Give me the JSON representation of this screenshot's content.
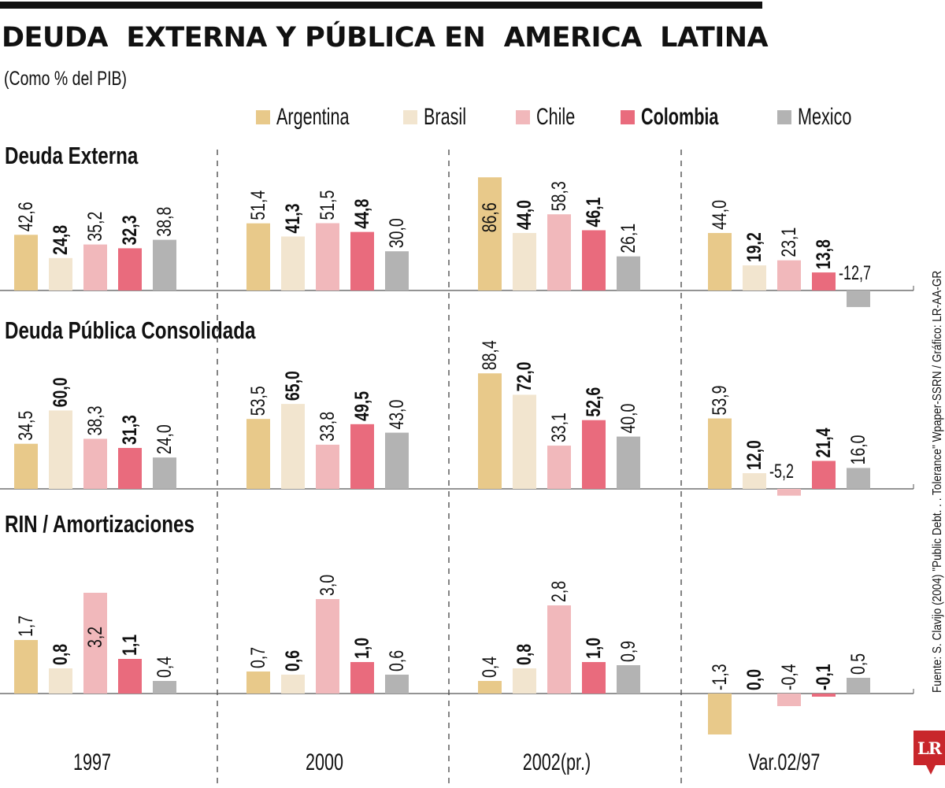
{
  "header": {
    "title": "DEUDA  EXTERNA Y PÚBLICA EN  AMERICA  LATINA",
    "subtitle": "(Como % del PIB)"
  },
  "legend": [
    {
      "label": "Argentina",
      "color": "#e8c98a",
      "bold": false
    },
    {
      "label": "Brasil",
      "color": "#f2e5cf",
      "bold": false
    },
    {
      "label": "Chile",
      "color": "#f1b8bb",
      "bold": false
    },
    {
      "label": "Colombia",
      "color": "#e96b7d",
      "bold": true
    },
    {
      "label": "Mexico",
      "color": "#b3b3b3",
      "bold": false
    }
  ],
  "source": "Fuente: S. Clavijo (2004) \"Public Debt. . . Tolerance\" Wpaper-SSRN / Gráfico: LR-AA-GR",
  "logo": "LR",
  "chart_data": {
    "type": "bar",
    "title": "DEUDA  EXTERNA Y PÚBLICA EN  AMERICA  LATINA",
    "subtitle": "(Como % del PIB)",
    "legend_position": "top-right",
    "grid": false,
    "categories": [
      "1997",
      "2000",
      "2002(pr.)",
      "Var.02/97"
    ],
    "series_names": [
      "Argentina",
      "Brasil",
      "Chile",
      "Colombia",
      "Mexico"
    ],
    "bold_series": [
      "Brasil",
      "Colombia"
    ],
    "panels": [
      {
        "name": "Deuda Externa",
        "values": [
          {
            "category": "1997",
            "values": [
              42.6,
              24.8,
              35.2,
              32.3,
              38.8
            ],
            "labels": [
              "42,6",
              "24,8",
              "35,2",
              "32,3",
              "38,8"
            ]
          },
          {
            "category": "2000",
            "values": [
              51.4,
              41.3,
              51.5,
              44.8,
              30.0
            ],
            "labels": [
              "51,4",
              "41,3",
              "51,5",
              "44,8",
              "30,0"
            ]
          },
          {
            "category": "2002(pr.)",
            "values": [
              86.6,
              44.0,
              58.3,
              46.1,
              26.1
            ],
            "labels": [
              "86,6",
              "44,0",
              "58,3",
              "46,1",
              "26,1"
            ]
          },
          {
            "category": "Var.02/97",
            "values": [
              44.0,
              19.2,
              23.1,
              13.8,
              -12.7
            ],
            "labels": [
              "44,0",
              "19,2",
              "23,1",
              "13,8",
              "-12,7"
            ]
          }
        ]
      },
      {
        "name": "Deuda Pública Consolidada",
        "values": [
          {
            "category": "1997",
            "values": [
              34.5,
              60.0,
              38.3,
              31.3,
              24.0
            ],
            "labels": [
              "34,5",
              "60,0",
              "38,3",
              "31,3",
              "24,0"
            ]
          },
          {
            "category": "2000",
            "values": [
              53.5,
              65.0,
              33.8,
              49.5,
              43.0
            ],
            "labels": [
              "53,5",
              "65,0",
              "33,8",
              "49,5",
              "43,0"
            ]
          },
          {
            "category": "2002(pr.)",
            "values": [
              88.4,
              72.0,
              33.1,
              52.6,
              40.0
            ],
            "labels": [
              "88,4",
              "72,0",
              "33,1",
              "52,6",
              "40,0"
            ]
          },
          {
            "category": "Var.02/97",
            "values": [
              53.9,
              12.0,
              -5.2,
              21.4,
              16.0
            ],
            "labels": [
              "53,9",
              "12,0",
              "-5,2",
              "21,4",
              "16,0"
            ]
          }
        ]
      },
      {
        "name": "RIN / Amortizaciones",
        "values": [
          {
            "category": "1997",
            "values": [
              1.7,
              0.8,
              3.2,
              1.1,
              0.4
            ],
            "labels": [
              "1,7",
              "0,8",
              "3,2",
              "1,1",
              "0,4"
            ]
          },
          {
            "category": "2000",
            "values": [
              0.7,
              0.6,
              3.0,
              1.0,
              0.6
            ],
            "labels": [
              "0,7",
              "0,6",
              "3,0",
              "1,0",
              "0,6"
            ]
          },
          {
            "category": "2002(pr.)",
            "values": [
              0.4,
              0.8,
              2.8,
              1.0,
              0.9
            ],
            "labels": [
              "0,4",
              "0,8",
              "2,8",
              "1,0",
              "0,9"
            ]
          },
          {
            "category": "Var.02/97",
            "values": [
              -1.3,
              0.0,
              -0.4,
              -0.1,
              0.5
            ],
            "labels": [
              "-1,3",
              "0,0",
              "-0,4",
              "-0,1",
              "0,5"
            ]
          }
        ]
      }
    ]
  }
}
